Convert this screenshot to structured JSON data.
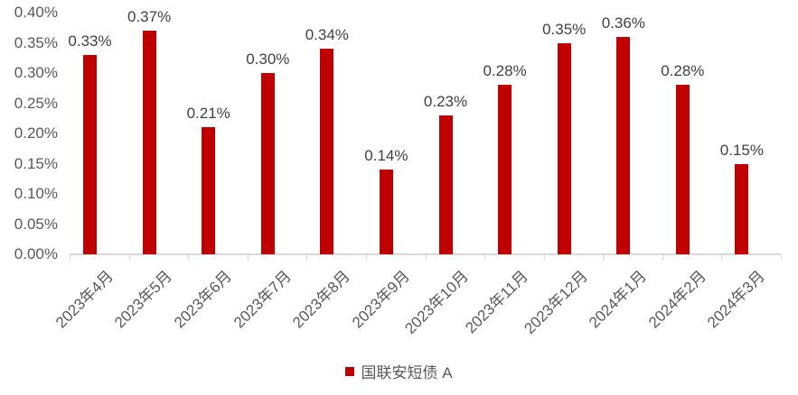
{
  "chart_data": {
    "type": "bar",
    "title": "",
    "xlabel": "",
    "ylabel": "",
    "categories": [
      "2023年4月",
      "2023年5月",
      "2023年6月",
      "2023年7月",
      "2023年8月",
      "2023年9月",
      "2023年10月",
      "2023年11月",
      "2023年12月",
      "2024年1月",
      "2024年2月",
      "2024年3月"
    ],
    "series": [
      {
        "name": "国联安短债 A",
        "values": [
          0.33,
          0.37,
          0.21,
          0.3,
          0.34,
          0.14,
          0.23,
          0.28,
          0.35,
          0.36,
          0.28,
          0.15
        ],
        "value_labels": [
          "0.33%",
          "0.37%",
          "0.21%",
          "0.30%",
          "0.34%",
          "0.14%",
          "0.23%",
          "0.28%",
          "0.35%",
          "0.36%",
          "0.28%",
          "0.15%"
        ]
      }
    ],
    "ylim": [
      0,
      0.4
    ],
    "ytick_labels_bottom_to_top": [
      "0.00%",
      "0.05%",
      "0.10%",
      "0.15%",
      "0.20%",
      "0.25%",
      "0.30%",
      "0.35%",
      "0.40%"
    ],
    "grid": false,
    "value_labels_shown": true,
    "legend_position": "bottom"
  },
  "legend": {
    "label": "国联安短债 A"
  },
  "colors": {
    "bar": "#c00000",
    "axis_line": "#d9d9d9",
    "axis_text": "#595959",
    "value_label_text": "#404040",
    "background": "#ffffff"
  }
}
